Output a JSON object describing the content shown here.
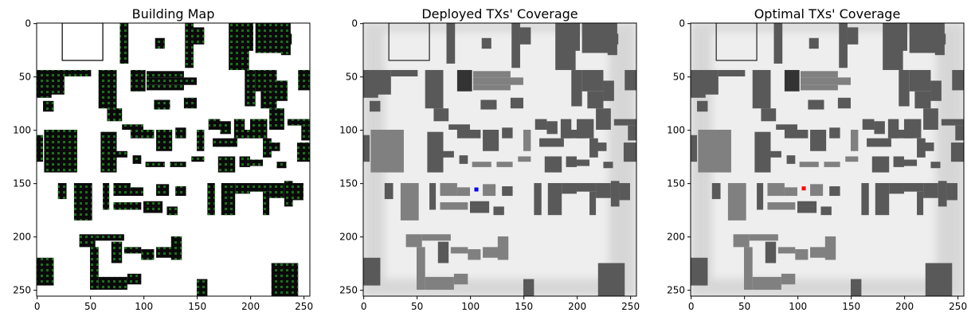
{
  "chart_data": [
    {
      "type": "heatmap",
      "title": "Building Map",
      "xlim": [
        0,
        255
      ],
      "ylim": [
        255,
        0
      ],
      "xticks": [
        0,
        50,
        100,
        150,
        200,
        250
      ],
      "yticks": [
        0,
        50,
        100,
        150,
        200,
        250
      ],
      "colors": {
        "background": "#ffffff",
        "building": "#0a0a0a",
        "dot": "#1e6e1e"
      }
    },
    {
      "type": "heatmap",
      "title": "Deployed TXs' Coverage",
      "xlim": [
        0,
        255
      ],
      "ylim": [
        255,
        0
      ],
      "xticks": [
        0,
        50,
        100,
        150,
        200,
        250
      ],
      "yticks": [
        0,
        50,
        100,
        150,
        200,
        250
      ],
      "marker": {
        "x": 106,
        "y": 156,
        "color": "#0000ff"
      },
      "colors": {
        "background": "#eeeeee",
        "building_dark": "#333333",
        "building_mid": "#595959",
        "building_light": "#808080"
      }
    },
    {
      "type": "heatmap",
      "title": "Optimal TXs' Coverage",
      "xlim": [
        0,
        255
      ],
      "ylim": [
        255,
        0
      ],
      "xticks": [
        0,
        50,
        100,
        150,
        200,
        250
      ],
      "yticks": [
        0,
        50,
        100,
        150,
        200,
        250
      ],
      "marker": {
        "x": 106,
        "y": 155,
        "color": "#ff0000"
      },
      "colors": {
        "background": "#eeeeee",
        "building_dark": "#333333",
        "building_mid": "#595959",
        "building_light": "#808080"
      }
    }
  ]
}
